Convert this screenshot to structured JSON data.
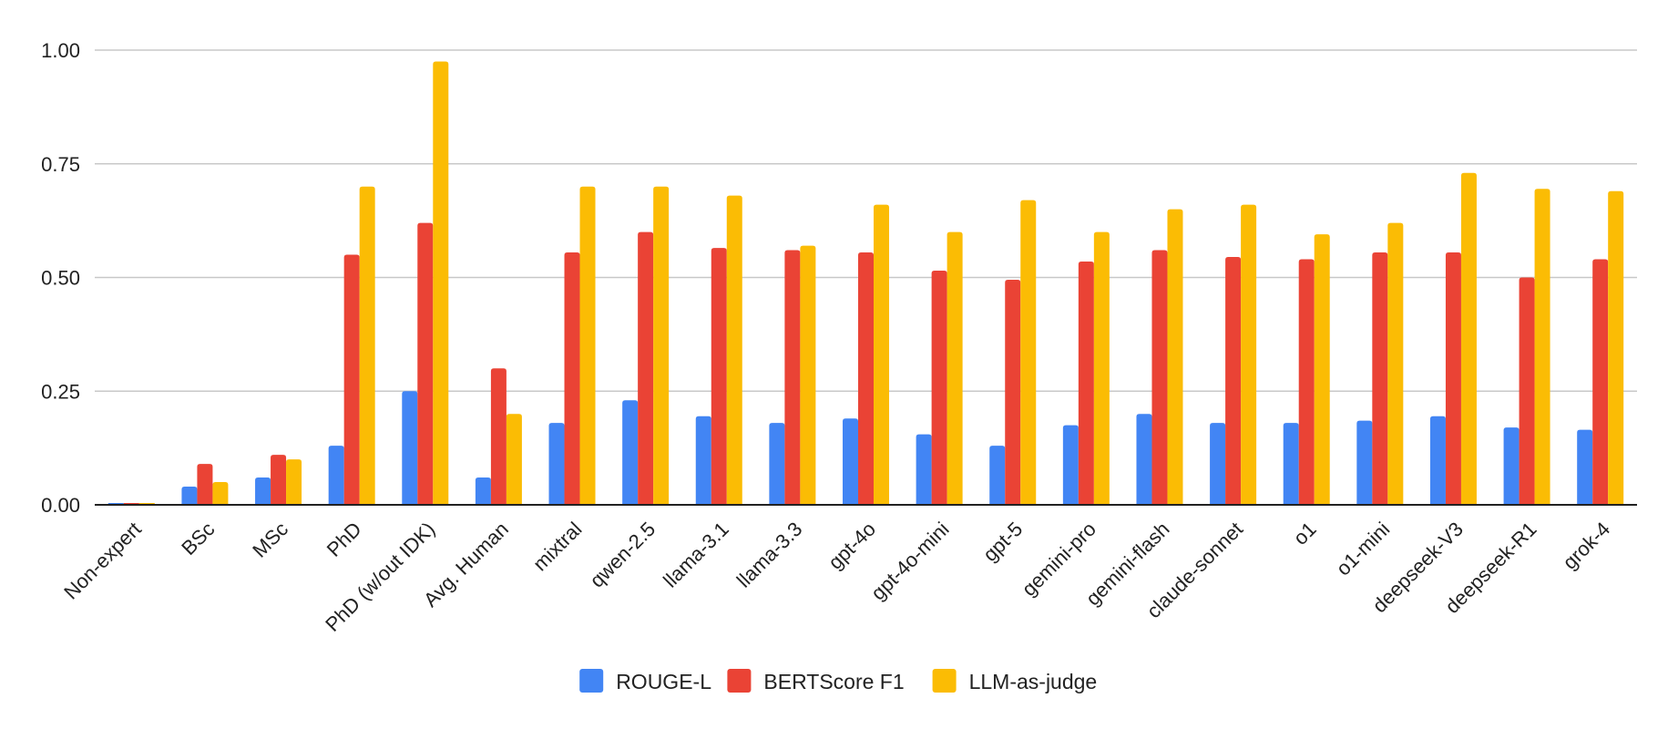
{
  "chart_data": {
    "type": "bar",
    "title": "",
    "xlabel": "",
    "ylabel": "",
    "ylim": [
      0,
      1.0
    ],
    "yticks": [
      "0.00",
      "0.25",
      "0.50",
      "0.75",
      "1.00"
    ],
    "ytick_values": [
      0,
      0.25,
      0.5,
      0.75,
      1.0
    ],
    "grid": true,
    "legend_position": "bottom",
    "categories": [
      "Non-expert",
      "BSc",
      "MSc",
      "PhD",
      "PhD (w/out IDK)",
      "Avg. Human",
      "mixtral",
      "qwen-2.5",
      "llama-3.1",
      "llama-3.3",
      "gpt-4o",
      "gpt-4o-mini",
      "gpt-5",
      "gemini-pro",
      "gemini-flash",
      "claude-sonnet",
      "o1",
      "o1-mini",
      "deepseek-V3",
      "deepseek-R1",
      "grok-4"
    ],
    "series": [
      {
        "name": "ROUGE-L",
        "color": "#4285F4",
        "values": [
          0.0,
          0.04,
          0.06,
          0.13,
          0.25,
          0.06,
          0.18,
          0.23,
          0.195,
          0.18,
          0.19,
          0.155,
          0.13,
          0.175,
          0.2,
          0.18,
          0.18,
          0.185,
          0.195,
          0.17,
          0.165
        ]
      },
      {
        "name": "BERTScore F1",
        "color": "#EA4335",
        "values": [
          0.0,
          0.09,
          0.11,
          0.55,
          0.62,
          0.3,
          0.555,
          0.6,
          0.565,
          0.56,
          0.555,
          0.515,
          0.495,
          0.535,
          0.56,
          0.545,
          0.54,
          0.555,
          0.555,
          0.5,
          0.54
        ]
      },
      {
        "name": "LLM-as-judge",
        "color": "#FBBC04",
        "values": [
          0.0,
          0.05,
          0.1,
          0.7,
          0.975,
          0.2,
          0.7,
          0.7,
          0.68,
          0.57,
          0.66,
          0.6,
          0.67,
          0.6,
          0.65,
          0.66,
          0.595,
          0.62,
          0.73,
          0.695,
          0.69
        ]
      }
    ]
  }
}
